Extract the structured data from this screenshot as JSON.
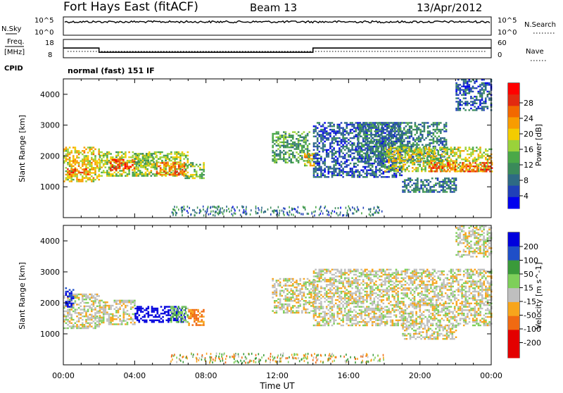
{
  "header": {
    "title": "Fort Hays East (fitACF)",
    "beam": "Beam 13",
    "date": "13/Apr/2012"
  },
  "cpid_label": "CPID",
  "cpid_text": "normal (fast) 151 IF",
  "noise_panel": {
    "left_label": "N.Sky",
    "right_label": "N.Search",
    "left_ticks": [
      "10^5",
      "10^0"
    ],
    "right_ticks": [
      "10^5",
      "10^0"
    ]
  },
  "freq_panel": {
    "left_label_top": "Freq.",
    "left_label_bottom": "[MHz]",
    "left_ticks": [
      "18",
      "8"
    ],
    "right_label": "Nave",
    "right_ticks": [
      "60",
      "0"
    ]
  },
  "x_axis": {
    "ticks": [
      "00:00",
      "04:00",
      "08:00",
      "12:00",
      "16:00",
      "20:00",
      "00:00"
    ],
    "title": "Time UT"
  },
  "power_panel": {
    "ylabel": "Slant Range [km]",
    "yticks": [
      "4000",
      "3000",
      "2000",
      "1000"
    ],
    "colorbar_label": "Power [dB]",
    "colorbar_ticks": [
      "28",
      "24",
      "20",
      "16",
      "12",
      "8",
      "4"
    ]
  },
  "velocity_panel": {
    "ylabel": "Slant Range [km]",
    "yticks": [
      "4000",
      "3000",
      "2000",
      "1000"
    ],
    "colorbar_label": "Velocity [m s^-1]",
    "colorbar_ticks": [
      "200",
      "100",
      "50",
      "15",
      "-15",
      "-50",
      "-100",
      "-200"
    ]
  },
  "chart_data": [
    {
      "type": "line",
      "series": [
        {
          "x": [
            0,
            2,
            2,
            14,
            14,
            24
          ],
          "values": [
            13.3,
            13.3,
            11.0,
            11.0,
            13.3,
            13.3
          ]
        }
      ],
      "ylim": [
        8,
        18
      ],
      "xlim": [
        0,
        24
      ]
    },
    {
      "type": "heatmap",
      "x_units": "hours UT",
      "y_units": "km",
      "xlim": [
        0,
        24
      ],
      "ylim": [
        0,
        4500
      ],
      "blobs": [
        {
          "t0": 0.0,
          "t1": 2.0,
          "r0": 1200,
          "r1": 2300,
          "level": 19
        },
        {
          "t0": 0.2,
          "t1": 1.5,
          "r0": 1400,
          "r1": 1600,
          "level": 26
        },
        {
          "t0": 2.0,
          "t1": 7.0,
          "r0": 1350,
          "r1": 2150,
          "level": 16
        },
        {
          "t0": 2.6,
          "t1": 4.0,
          "r0": 1550,
          "r1": 1900,
          "level": 26
        },
        {
          "t0": 4.0,
          "t1": 5.2,
          "r0": 1650,
          "r1": 2100,
          "level": 13
        },
        {
          "t0": 5.2,
          "t1": 6.8,
          "r0": 1400,
          "r1": 1800,
          "level": 24
        },
        {
          "t0": 6.8,
          "t1": 7.9,
          "r0": 1300,
          "r1": 1800,
          "level": 14
        },
        {
          "t0": 11.7,
          "t1": 13.8,
          "r0": 1800,
          "r1": 2800,
          "level": 12
        },
        {
          "t0": 13.5,
          "t1": 14.1,
          "r0": 1700,
          "r1": 2100,
          "level": 19
        },
        {
          "t0": 14.0,
          "t1": 19.0,
          "r0": 1300,
          "r1": 3100,
          "level": 6
        },
        {
          "t0": 16.5,
          "t1": 21.5,
          "r0": 1800,
          "r1": 3100,
          "level": 9
        },
        {
          "t0": 18.0,
          "t1": 24.0,
          "r0": 1500,
          "r1": 2300,
          "level": 17
        },
        {
          "t0": 20.5,
          "t1": 24.0,
          "r0": 1500,
          "r1": 1800,
          "level": 25
        },
        {
          "t0": 19.0,
          "t1": 22.0,
          "r0": 850,
          "r1": 1300,
          "level": 8
        },
        {
          "t0": 22.0,
          "t1": 24.0,
          "r0": 3500,
          "r1": 4500,
          "level": 6
        }
      ]
    },
    {
      "type": "heatmap",
      "x_units": "hours UT",
      "y_units": "km",
      "xlim": [
        0,
        24
      ],
      "ylim": [
        0,
        4500
      ],
      "blobs": [
        {
          "t0": 0.0,
          "t1": 2.0,
          "r0": 1200,
          "r1": 2300,
          "level": 0
        },
        {
          "t0": 0.1,
          "t1": 0.6,
          "r0": 1900,
          "r1": 2500,
          "level": 150
        },
        {
          "t0": 2.0,
          "t1": 4.0,
          "r0": 1300,
          "r1": 2100,
          "level": 0
        },
        {
          "t0": 4.0,
          "t1": 6.8,
          "r0": 1400,
          "r1": 1900,
          "level": 220
        },
        {
          "t0": 6.0,
          "t1": 7.0,
          "r0": 1400,
          "r1": 1900,
          "level": 40
        },
        {
          "t0": 7.0,
          "t1": 7.9,
          "r0": 1300,
          "r1": 1800,
          "level": -60
        },
        {
          "t0": 11.7,
          "t1": 14.1,
          "r0": 1700,
          "r1": 2800,
          "level": 0
        },
        {
          "t0": 14.0,
          "t1": 24.0,
          "r0": 1300,
          "r1": 3100,
          "level": 0
        },
        {
          "t0": 19.0,
          "t1": 22.0,
          "r0": 850,
          "r1": 1300,
          "level": 0
        },
        {
          "t0": 22.0,
          "t1": 24.0,
          "r0": 3500,
          "r1": 4500,
          "level": 0
        }
      ]
    }
  ]
}
